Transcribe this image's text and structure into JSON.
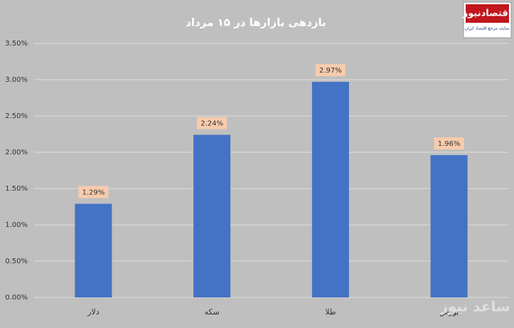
{
  "chart_data": {
    "type": "bar",
    "title": "بازدهی بازارها در ۱۵ مرداد",
    "categories": [
      "دلار",
      "سکه",
      "طلا",
      "بورس"
    ],
    "values": [
      1.29,
      2.24,
      2.97,
      1.96
    ],
    "value_labels": [
      "1.29%",
      "2.24%",
      "2.97%",
      "1.96%"
    ],
    "color": "#4472c4",
    "ylim": [
      0,
      3.5
    ],
    "yticks": [
      {
        "value": 0,
        "label": "0.00%"
      },
      {
        "value": 0.5,
        "label": "0.50%"
      },
      {
        "value": 1,
        "label": "1.00%"
      },
      {
        "value": 1.5,
        "label": "1.50%"
      },
      {
        "value": 2,
        "label": "2.00%"
      },
      {
        "value": 2.5,
        "label": "2.50%"
      },
      {
        "value": 3,
        "label": "3.00%"
      },
      {
        "value": 3.5,
        "label": "3.50%"
      }
    ],
    "grid": true
  },
  "logo": {
    "name": "اقتصادنیوز",
    "tagline": "سایت مرجع اقتصاد ایران"
  },
  "watermark": "ساعد نیوز"
}
